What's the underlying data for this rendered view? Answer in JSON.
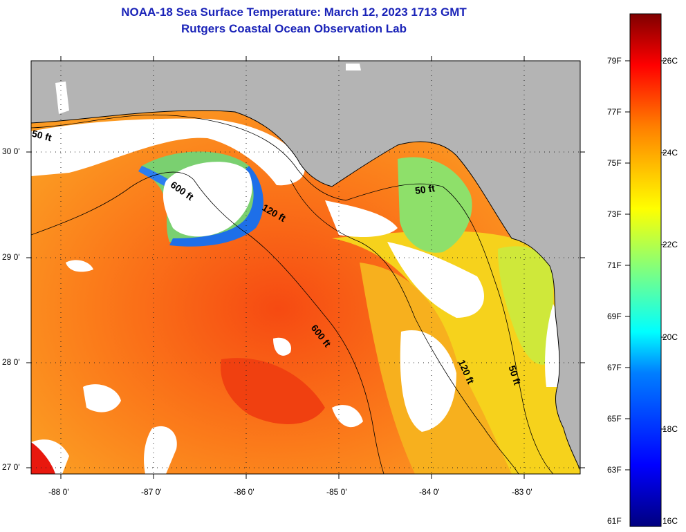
{
  "header": {
    "title_line1": "NOAA-18 Sea Surface Temperature:  March 12, 2023 1713 GMT",
    "title_line2": "Rutgers Coastal Ocean Observation Lab"
  },
  "map": {
    "lat_labels": [
      "30 0'",
      "29 0'",
      "28 0'",
      "27 0'"
    ],
    "lon_labels": [
      "-88 0'",
      "-87 0'",
      "-86 0'",
      "-85 0'",
      "-84 0'",
      "-83 0'"
    ],
    "contours": [
      "50 ft",
      "600 ft",
      "120 ft",
      "50 ft",
      "600 ft",
      "120 ft",
      "50 ft"
    ]
  },
  "colorbar": {
    "fahrenheit": [
      "79F",
      "77F",
      "75F",
      "73F",
      "71F",
      "69F",
      "67F",
      "65F",
      "63F",
      "61F"
    ],
    "celsius": [
      "26C",
      "24C",
      "22C",
      "20C",
      "18C",
      "16C"
    ]
  },
  "colors": {
    "land": "#b4b4b4",
    "title": "#1a23b8",
    "scale": [
      "#00007f",
      "#0000ff",
      "#007fff",
      "#00ffff",
      "#7fff7f",
      "#ffff00",
      "#ff7f00",
      "#ff0000",
      "#7f0000"
    ]
  }
}
